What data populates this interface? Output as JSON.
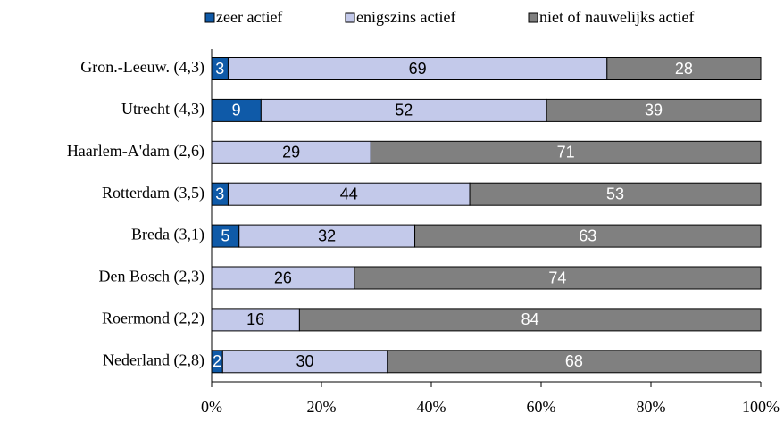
{
  "chart_data": {
    "type": "stacked_bar_horizontal",
    "categories": [
      "Gron.-Leeuw. (4,3)",
      "Utrecht (4,3)",
      "Haarlem-A'dam (2,6)",
      "Rotterdam (3,5)",
      "Breda (3,1)",
      "Den Bosch (2,3)",
      "Roermond (2,2)",
      "Nederland (2,8)"
    ],
    "series": [
      {
        "name": "zeer actief",
        "color": "#0f5aa8",
        "label_color": "#ffffff",
        "values": [
          3,
          9,
          0,
          3,
          5,
          0,
          0,
          2
        ]
      },
      {
        "name": "enigszins actief",
        "color": "#c3c9ea",
        "label_color": "#000000",
        "values": [
          69,
          52,
          29,
          44,
          32,
          26,
          16,
          30
        ]
      },
      {
        "name": "niet of nauwelijks actief",
        "color": "#808080",
        "label_color": "#ffffff",
        "values": [
          28,
          39,
          71,
          53,
          63,
          74,
          84,
          68
        ]
      }
    ],
    "xlim": [
      0,
      100
    ],
    "xticks": [
      {
        "value": 0,
        "label": "0%"
      },
      {
        "value": 20,
        "label": "20%"
      },
      {
        "value": 40,
        "label": "40%"
      },
      {
        "value": 60,
        "label": "60%"
      },
      {
        "value": 80,
        "label": "80%"
      },
      {
        "value": 100,
        "label": "100%"
      }
    ],
    "legend": "top"
  }
}
